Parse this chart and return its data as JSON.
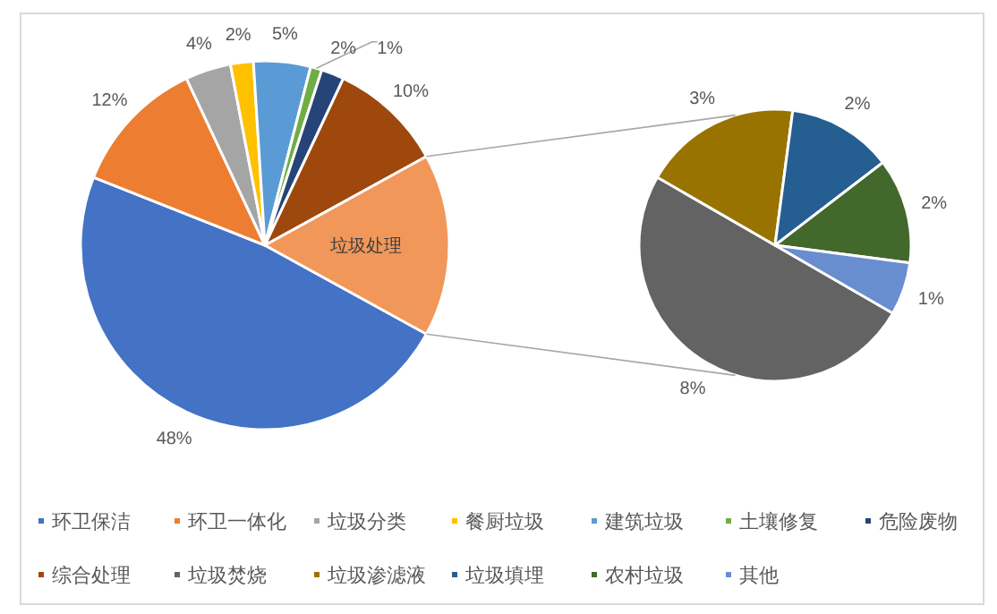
{
  "chart_data": [
    {
      "type": "pie",
      "categories": [
        "环卫保洁",
        "环卫一体化",
        "垃圾分类",
        "餐厨垃圾",
        "建筑垃圾",
        "土壤修复",
        "危险废物",
        "综合处理",
        "垃圾处理"
      ],
      "values": [
        48,
        12,
        4,
        2,
        5,
        1,
        2,
        10,
        16
      ],
      "colors": [
        "#4472c4",
        "#ed7d31",
        "#a5a5a5",
        "#ffc000",
        "#5b9bd5",
        "#70ad47",
        "#264478",
        "#9e480e",
        "#f1975a"
      ],
      "value_labels": [
        "48%",
        "12%",
        "4%",
        "2%",
        "5%",
        "1%",
        "2%",
        "10%",
        null
      ],
      "legend": "bottom"
    },
    {
      "type": "pie",
      "categories": [
        "垃圾焚烧",
        "垃圾渗滤液",
        "垃圾填埋",
        "农村垃圾",
        "其他"
      ],
      "values": [
        8,
        3,
        2,
        2,
        1
      ],
      "colors": [
        "#636363",
        "#997300",
        "#255e91",
        "#43682b",
        "#698ed0"
      ],
      "value_labels": [
        "8%",
        "3%",
        "2%",
        "2%",
        "1%"
      ],
      "legend": "bottom"
    }
  ]
}
